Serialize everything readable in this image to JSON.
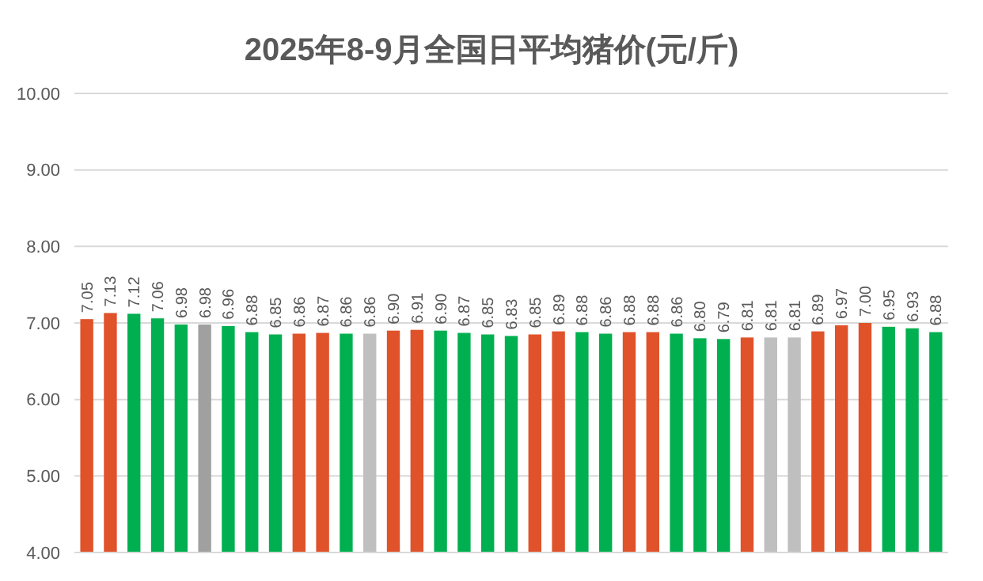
{
  "chart_data": {
    "type": "bar",
    "title": "2025年8-9月全国日平均猪价(元/斤)",
    "categories": [
      null,
      null,
      null,
      null,
      null,
      null,
      null,
      null,
      null,
      null,
      null,
      null,
      null,
      null,
      null,
      null,
      null,
      null,
      null,
      null,
      null,
      null,
      null,
      null,
      null,
      null,
      null,
      null,
      null,
      null,
      null,
      null,
      null,
      null,
      null,
      null,
      null
    ],
    "values": [
      7.05,
      7.13,
      7.12,
      7.06,
      6.98,
      6.98,
      6.96,
      6.88,
      6.85,
      6.86,
      6.87,
      6.86,
      6.86,
      6.9,
      6.91,
      6.9,
      6.87,
      6.85,
      6.83,
      6.85,
      6.89,
      6.88,
      6.86,
      6.88,
      6.88,
      6.86,
      6.8,
      6.79,
      6.81,
      6.81,
      6.81,
      6.89,
      6.97,
      7.0,
      6.95,
      6.93,
      6.88
    ],
    "colors": [
      "#e0522a",
      "#e0522a",
      "#00b050",
      "#00b050",
      "#00b050",
      "#a0a0a0",
      "#00b050",
      "#00b050",
      "#00b050",
      "#e0522a",
      "#e0522a",
      "#00b050",
      "#bfbfbf",
      "#e0522a",
      "#e0522a",
      "#00b050",
      "#00b050",
      "#00b050",
      "#00b050",
      "#e0522a",
      "#e0522a",
      "#00b050",
      "#00b050",
      "#e0522a",
      "#e0522a",
      "#00b050",
      "#00b050",
      "#00b050",
      "#e0522a",
      "#bfbfbf",
      "#bfbfbf",
      "#e0522a",
      "#e0522a",
      "#e0522a",
      "#00b050",
      "#00b050",
      "#00b050"
    ],
    "ylim": [
      4,
      10
    ],
    "yticks": [
      {
        "value": 4,
        "label": "4.00"
      },
      {
        "value": 5,
        "label": "5.00"
      },
      {
        "value": 6,
        "label": "6.00"
      },
      {
        "value": 7,
        "label": "7.00"
      },
      {
        "value": 8,
        "label": "8.00"
      },
      {
        "value": 9,
        "label": "9.00"
      },
      {
        "value": 10,
        "label": "10.00"
      }
    ],
    "value_labels": [
      "7.05",
      "7.13",
      "7.12",
      "7.06",
      "6.98",
      "6.98",
      "6.96",
      "6.88",
      "6.85",
      "6.86",
      "6.87",
      "6.86",
      "6.86",
      "6.90",
      "6.91",
      "6.90",
      "6.87",
      "6.85",
      "6.83",
      "6.85",
      "6.89",
      "6.88",
      "6.86",
      "6.88",
      "6.88",
      "6.86",
      "6.80",
      "6.79",
      "6.81",
      "6.81",
      "6.81",
      "6.89",
      "6.97",
      "7.00",
      "6.95",
      "6.93",
      "6.88"
    ],
    "grid": "y"
  }
}
